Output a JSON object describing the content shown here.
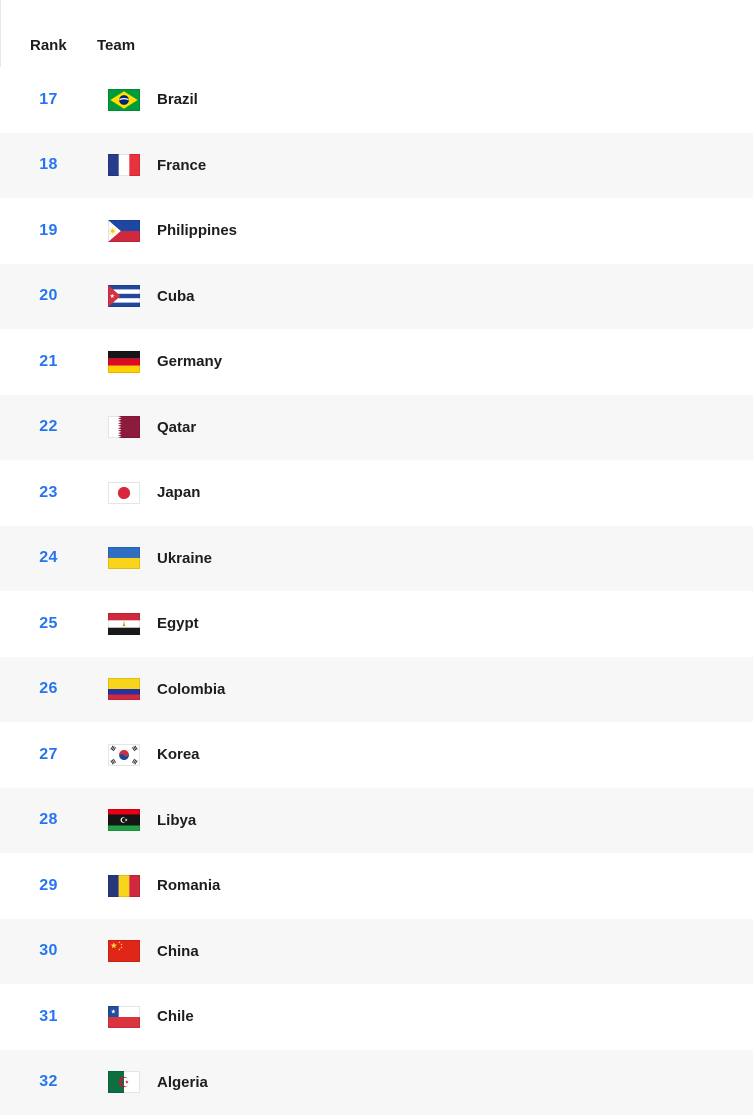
{
  "table": {
    "columns": [
      {
        "key": "rank",
        "label": "Rank"
      },
      {
        "key": "team",
        "label": "Team"
      }
    ],
    "rows": [
      {
        "rank": "17",
        "team": "Brazil",
        "flag": "brazil"
      },
      {
        "rank": "18",
        "team": "France",
        "flag": "france"
      },
      {
        "rank": "19",
        "team": "Philippines",
        "flag": "philippines"
      },
      {
        "rank": "20",
        "team": "Cuba",
        "flag": "cuba"
      },
      {
        "rank": "21",
        "team": "Germany",
        "flag": "germany"
      },
      {
        "rank": "22",
        "team": "Qatar",
        "flag": "qatar"
      },
      {
        "rank": "23",
        "team": "Japan",
        "flag": "japan"
      },
      {
        "rank": "24",
        "team": "Ukraine",
        "flag": "ukraine"
      },
      {
        "rank": "25",
        "team": "Egypt",
        "flag": "egypt"
      },
      {
        "rank": "26",
        "team": "Colombia",
        "flag": "colombia"
      },
      {
        "rank": "27",
        "team": "Korea",
        "flag": "korea"
      },
      {
        "rank": "28",
        "team": "Libya",
        "flag": "libya"
      },
      {
        "rank": "29",
        "team": "Romania",
        "flag": "romania"
      },
      {
        "rank": "30",
        "team": "China",
        "flag": "china"
      },
      {
        "rank": "31",
        "team": "Chile",
        "flag": "chile"
      },
      {
        "rank": "32",
        "team": "Algeria",
        "flag": "algeria"
      }
    ]
  },
  "colors": {
    "rank_number": "#2575f0",
    "team_text": "#1d1d1d",
    "row_alt_bg": "#f7f7f8",
    "page_border": "#e8e8e8"
  }
}
